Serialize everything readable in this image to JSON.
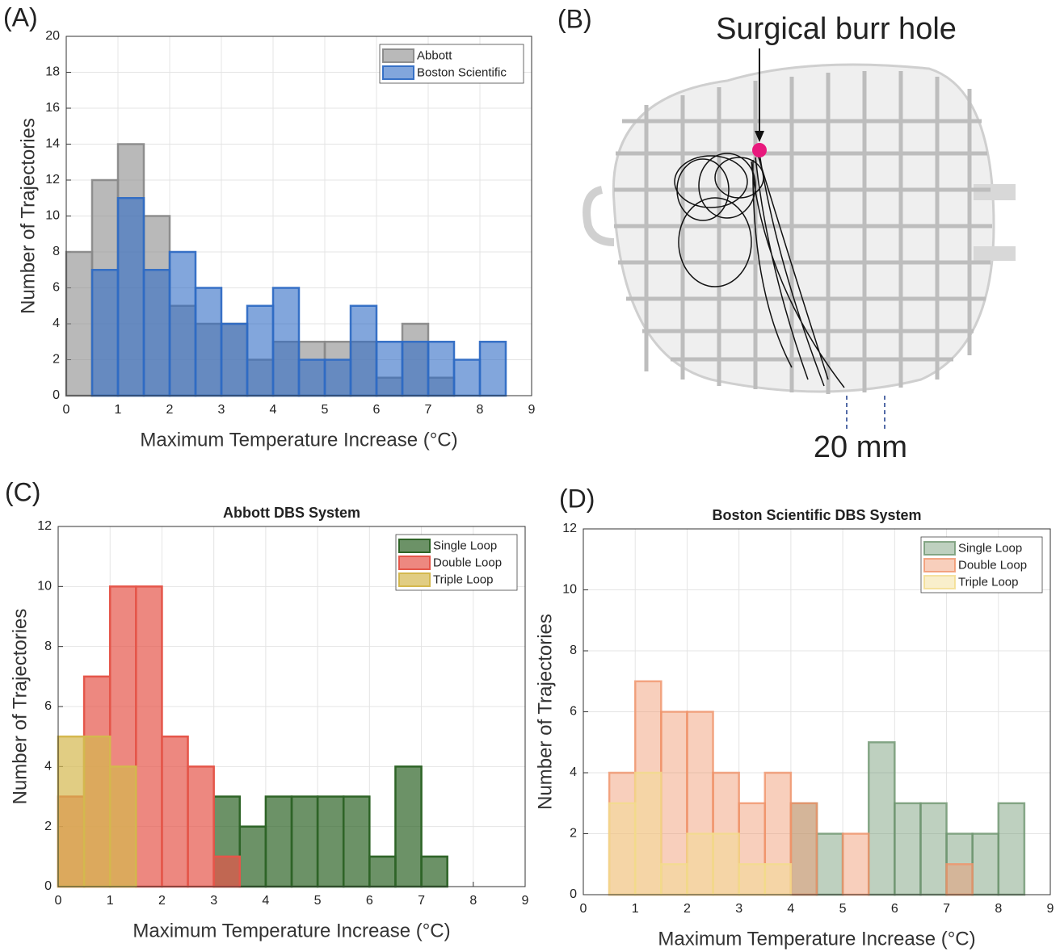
{
  "panel_labels": [
    "(A)",
    "(B)",
    "(C)",
    "(D)"
  ],
  "photo": {
    "annotation": "Surgical burr hole",
    "scale_label": "20 mm"
  },
  "chart_data": [
    {
      "type": "histogram",
      "xlabel": "Maximum Temperature Increase (°C)",
      "ylabel": "Number of Trajectories",
      "bins": [
        0,
        0.5,
        1,
        1.5,
        2,
        2.5,
        3,
        3.5,
        4,
        4.5,
        5,
        5.5,
        6,
        6.5,
        7,
        7.5,
        8,
        8.5
      ],
      "series": [
        {
          "name": "Abbott",
          "color": "#8a8a8a",
          "values": [
            8,
            12,
            14,
            10,
            5,
            4,
            4,
            2,
            3,
            3,
            3,
            3,
            1,
            4,
            1,
            0,
            0
          ]
        },
        {
          "name": "Boston Scientific",
          "color": "#2f6bc4",
          "values": [
            0,
            7,
            11,
            7,
            8,
            6,
            4,
            5,
            6,
            2,
            2,
            5,
            3,
            3,
            3,
            2,
            3
          ]
        }
      ],
      "opacity": 0.6,
      "xlim": [
        0,
        9
      ],
      "xticks": [
        0,
        1,
        2,
        3,
        4,
        5,
        6,
        7,
        8,
        9
      ],
      "ylim": [
        0,
        20
      ],
      "yticks": [
        0,
        2,
        4,
        6,
        8,
        10,
        12,
        14,
        16,
        18,
        20
      ],
      "grid": true,
      "legend": "upper right"
    },
    {
      "type": "histogram",
      "title": "Abbott DBS System",
      "xlabel": "Maximum Temperature Increase (°C)",
      "ylabel": "Number of Trajectories",
      "bins": [
        0,
        0.5,
        1,
        1.5,
        2,
        2.5,
        3,
        3.5,
        4,
        4.5,
        5,
        5.5,
        6,
        6.5,
        7,
        7.5
      ],
      "series": [
        {
          "name": "Single Loop",
          "color": "#2e6427",
          "values": [
            0,
            0,
            0,
            0,
            0,
            0,
            3,
            2,
            3,
            3,
            3,
            3,
            1,
            4,
            1
          ]
        },
        {
          "name": "Double Loop",
          "color": "#e5564a",
          "values": [
            3,
            7,
            10,
            10,
            5,
            4,
            1,
            0,
            0,
            0,
            0,
            0,
            0,
            0,
            0
          ]
        },
        {
          "name": "Triple Loop",
          "color": "#d4b84e",
          "values": [
            5,
            5,
            4,
            0,
            0,
            0,
            0,
            0,
            0,
            0,
            0,
            0,
            0,
            0,
            0
          ]
        }
      ],
      "opacity": 0.7,
      "xlim": [
        0,
        9
      ],
      "xticks": [
        0,
        1,
        2,
        3,
        4,
        5,
        6,
        7,
        8,
        9
      ],
      "ylim": [
        0,
        12
      ],
      "yticks": [
        0,
        2,
        4,
        6,
        8,
        10,
        12
      ],
      "grid": true,
      "legend": "upper right"
    },
    {
      "type": "histogram",
      "title": "Boston Scientific DBS System",
      "xlabel": "Maximum Temperature Increase (°C)",
      "ylabel": "Number of Trajectories",
      "bins": [
        0.5,
        1,
        1.5,
        2,
        2.5,
        3,
        3.5,
        4,
        4.5,
        5,
        5.5,
        6,
        6.5,
        7,
        7.5,
        8,
        8.5
      ],
      "series": [
        {
          "name": "Single Loop",
          "color": "#6f9670",
          "values": [
            0,
            0,
            0,
            0,
            0,
            0,
            0,
            3,
            2,
            0,
            5,
            3,
            3,
            2,
            2,
            3
          ]
        },
        {
          "name": "Double Loop",
          "color": "#f0946a",
          "values": [
            4,
            7,
            6,
            6,
            4,
            3,
            4,
            3,
            0,
            2,
            0,
            0,
            0,
            1,
            0,
            0
          ]
        },
        {
          "name": "Triple Loop",
          "color": "#f2dc8c",
          "values": [
            3,
            4,
            1,
            2,
            2,
            1,
            1,
            0,
            0,
            0,
            0,
            0,
            0,
            0,
            0,
            0
          ]
        }
      ],
      "opacity": 0.45,
      "xlim": [
        0,
        9
      ],
      "xticks": [
        0,
        1,
        2,
        3,
        4,
        5,
        6,
        7,
        8,
        9
      ],
      "ylim": [
        0,
        12
      ],
      "yticks": [
        0,
        2,
        4,
        6,
        8,
        10,
        12
      ],
      "grid": true,
      "legend": "upper right"
    }
  ]
}
